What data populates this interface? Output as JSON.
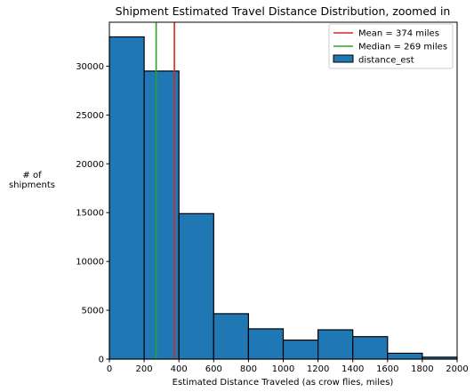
{
  "chart_data": {
    "type": "bar",
    "title": "Shipment Estimated Travel Distance Distribution, zoomed in",
    "xlabel": "Estimated Distance Traveled (as crow flies, miles)",
    "ylabel_lines": [
      "# of",
      "shipments"
    ],
    "xlim": [
      0,
      2000
    ],
    "ylim": [
      0,
      34500
    ],
    "xticks": [
      0,
      200,
      400,
      600,
      800,
      1000,
      1200,
      1400,
      1600,
      1800,
      2000
    ],
    "yticks": [
      0,
      5000,
      10000,
      15000,
      20000,
      25000,
      30000
    ],
    "bins": [
      {
        "x0": 0,
        "x1": 200,
        "count": 33000
      },
      {
        "x0": 200,
        "x1": 400,
        "count": 29500
      },
      {
        "x0": 400,
        "x1": 600,
        "count": 14900
      },
      {
        "x0": 600,
        "x1": 800,
        "count": 4650
      },
      {
        "x0": 800,
        "x1": 1000,
        "count": 3100
      },
      {
        "x0": 1000,
        "x1": 1200,
        "count": 1950
      },
      {
        "x0": 1200,
        "x1": 1400,
        "count": 3000
      },
      {
        "x0": 1400,
        "x1": 1600,
        "count": 2300
      },
      {
        "x0": 1600,
        "x1": 1800,
        "count": 600
      },
      {
        "x0": 1800,
        "x1": 2000,
        "count": 200
      }
    ],
    "bar_color": "#1f77b4",
    "vlines": [
      {
        "label": "Mean = 374 miles",
        "x": 374,
        "color": "#d62728"
      },
      {
        "label": "Median = 269 miles",
        "x": 269,
        "color": "#2ca02c"
      }
    ],
    "series_name": "distance_est",
    "legend_position": "top-right",
    "grid": false
  }
}
